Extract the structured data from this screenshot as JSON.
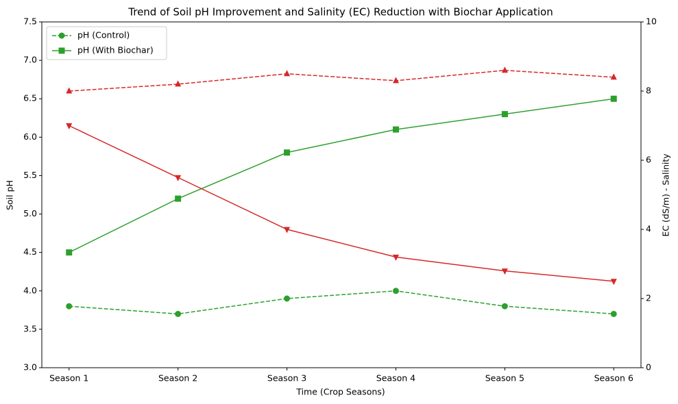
{
  "chart_data": {
    "type": "line",
    "title": "Trend of Soil pH Improvement and Salinity (EC) Reduction with Biochar Application",
    "xlabel": "Time (Crop Seasons)",
    "ylabel": "Soil pH",
    "y2label": "EC (dS/m) - Salinity",
    "categories": [
      "Season 1",
      "Season 2",
      "Season 3",
      "Season 4",
      "Season 5",
      "Season 6"
    ],
    "ylim": [
      3,
      7.5
    ],
    "yticks": [
      {
        "value": 3,
        "label": "3.0"
      },
      3.5,
      {
        "value": 4,
        "label": "4.0"
      },
      4.5,
      {
        "value": 5,
        "label": "5.0"
      },
      5.5,
      {
        "value": 6,
        "label": "6.0"
      },
      6.5,
      {
        "value": 7,
        "label": "7.0"
      },
      7.5
    ],
    "y2lim": [
      0,
      10
    ],
    "y2ticks": [
      0,
      2,
      4,
      6,
      8,
      10
    ],
    "ycolor": "#2ca02c",
    "y2color": "#d62728",
    "legend": "upper left",
    "series": [
      {
        "name": "pH (Control)",
        "color": "#2ca02c",
        "marker": "circle",
        "linestyle": "dashed",
        "values": [
          3.8,
          3.7,
          3.9,
          4.0,
          3.8,
          3.7
        ]
      },
      {
        "name": "pH (With Biochar)",
        "color": "#2ca02c",
        "marker": "square",
        "linestyle": "solid",
        "values": [
          4.5,
          5.2,
          5.8,
          6.1,
          6.3,
          6.5
        ]
      },
      {
        "color": "#d62728",
        "marker": "triangle-up",
        "linestyle": "dashed",
        "axis": "y2",
        "values": [
          8.0,
          8.2,
          8.5,
          8.3,
          8.6,
          8.4
        ]
      },
      {
        "color": "#d62728",
        "marker": "triangle-down",
        "linestyle": "solid",
        "axis": "y2",
        "values": [
          7.0,
          5.5,
          4.0,
          3.2,
          2.8,
          2.5
        ]
      }
    ]
  }
}
